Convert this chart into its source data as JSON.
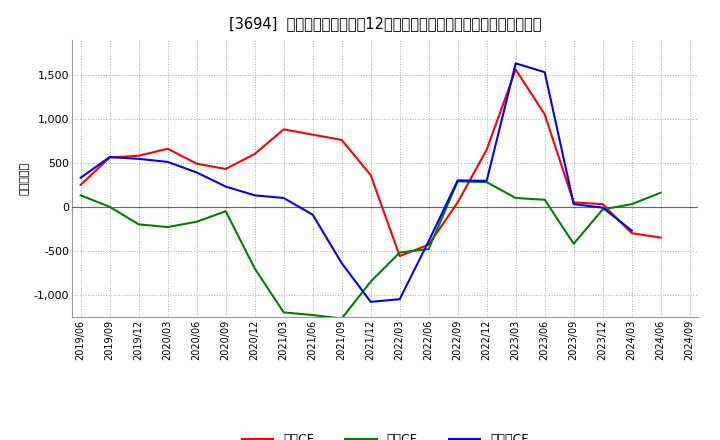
{
  "title": "[3694]  キャッシュフローの12か月移動合計の対前年同期増減額の推移",
  "ylabel": "（百万円）",
  "x_labels": [
    "2019/06",
    "2019/09",
    "2019/12",
    "2020/03",
    "2020/06",
    "2020/09",
    "2020/12",
    "2021/03",
    "2021/06",
    "2021/09",
    "2021/12",
    "2022/03",
    "2022/06",
    "2022/09",
    "2022/12",
    "2023/03",
    "2023/06",
    "2023/09",
    "2023/12",
    "2024/03",
    "2024/06",
    "2024/09"
  ],
  "operating_cf": [
    250,
    560,
    580,
    660,
    490,
    430,
    600,
    880,
    820,
    760,
    360,
    -560,
    -430,
    50,
    650,
    1560,
    1050,
    50,
    30,
    -300,
    -350,
    null
  ],
  "investing_cf": [
    130,
    0,
    -200,
    -230,
    -170,
    -50,
    -700,
    -1200,
    -1230,
    -1270,
    -850,
    -520,
    -480,
    290,
    280,
    100,
    80,
    -420,
    -30,
    30,
    160,
    null
  ],
  "free_cf": [
    330,
    565,
    545,
    510,
    390,
    230,
    130,
    100,
    -90,
    -640,
    -1080,
    -1050,
    -390,
    300,
    295,
    1630,
    1530,
    30,
    -10,
    -270,
    null,
    null
  ],
  "operating_color": "#ff0000",
  "investing_color": "#008000",
  "free_color": "#0000ff",
  "ylim": [
    -1250,
    1900
  ],
  "yticks": [
    -1000,
    -500,
    0,
    500,
    1000,
    1500
  ],
  "background_color": "#ffffff",
  "grid_color": "#aaaaaa",
  "zero_line_color": "#666666",
  "legend_labels": [
    "営業CF",
    "投資CF",
    "フリーCF"
  ]
}
